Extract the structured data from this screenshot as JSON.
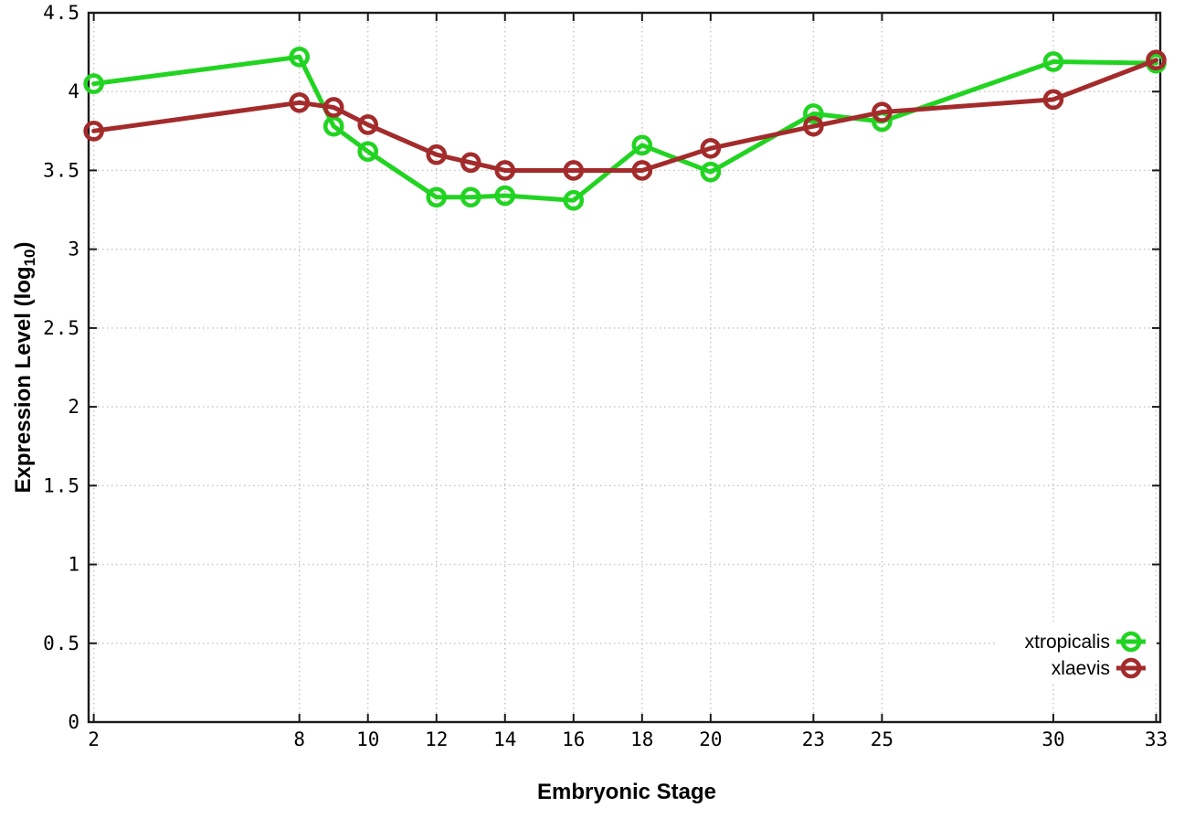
{
  "chart_data": {
    "type": "line",
    "xlabel": "Embryonic Stage",
    "ylabel": {
      "text": "Expression Level (log",
      "sub": "10",
      "suffix": ")"
    },
    "x": [
      2,
      8,
      9,
      10,
      12,
      13,
      14,
      16,
      18,
      20,
      23,
      25,
      30,
      33
    ],
    "series": [
      {
        "name": "xtropicalis",
        "color": "#22d422",
        "marker": "open-circle",
        "values": [
          4.05,
          4.22,
          3.78,
          3.62,
          3.33,
          3.33,
          3.34,
          3.31,
          3.66,
          3.49,
          3.86,
          3.81,
          4.19,
          4.18
        ]
      },
      {
        "name": "xlaevis",
        "color": "#a32b2b",
        "marker": "open-circle",
        "values": [
          3.75,
          3.93,
          3.9,
          3.79,
          3.6,
          3.55,
          3.5,
          3.5,
          3.5,
          3.64,
          3.78,
          3.87,
          3.95,
          4.2
        ]
      }
    ],
    "x_tick_values": [
      2,
      8,
      10,
      12,
      14,
      16,
      18,
      20,
      23,
      25,
      30,
      33
    ],
    "x_tick_labels": [
      "2",
      "8",
      "10",
      "12",
      "14",
      "16",
      "18",
      "20",
      "23",
      "25",
      "30",
      "33"
    ],
    "y_tick_values": [
      0,
      0.5,
      1,
      1.5,
      2,
      2.5,
      3,
      3.5,
      4,
      4.5
    ],
    "y_tick_labels": [
      "0",
      "0.5",
      "1",
      "1.5",
      "2",
      "2.5",
      "3",
      "3.5",
      "4",
      "4.5"
    ],
    "xlim": [
      2,
      33
    ],
    "ylim": [
      0,
      4.5
    ],
    "grid": true,
    "legend_position": "inside-bottom-right",
    "colors": {
      "background": "#ffffff",
      "axis": "#1a1a1a",
      "grid": "#c3c3c3",
      "text": "#000000"
    }
  }
}
